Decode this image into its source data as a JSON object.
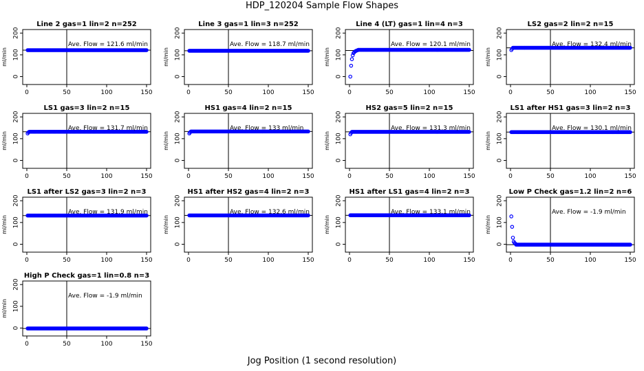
{
  "page": {
    "title": "HDP_120204  Sample Flow Shapes",
    "xlabel": "Jog Position (1 second resolution)"
  },
  "colors": {
    "points": "#0000ff",
    "axis": "#000000"
  },
  "chart_data": [
    {
      "type": "scatter",
      "title": "Line 2 gas=1 lin=2 n=252",
      "ylabel": "ml/min",
      "annotation": "Ave. Flow =  121.6  ml/min",
      "mean": 121.6,
      "hline": 121.6,
      "vline": 50,
      "xlim": [
        0,
        150
      ],
      "ylim": [
        -30,
        210
      ],
      "xticks": [
        0,
        50,
        100,
        150
      ],
      "yticks": [
        0,
        100,
        200
      ],
      "shape": "flat",
      "level": 121.6
    },
    {
      "type": "scatter",
      "title": "Line 3 gas=1 lin=3 n=252",
      "ylabel": "ml/min",
      "annotation": "Ave. Flow =  118.7  ml/min",
      "mean": 118.7,
      "hline": 118.7,
      "vline": 50,
      "xlim": [
        0,
        150
      ],
      "ylim": [
        -30,
        210
      ],
      "xticks": [
        0,
        50,
        100,
        150
      ],
      "yticks": [
        0,
        100,
        200
      ],
      "shape": "flat",
      "level": 118.7
    },
    {
      "type": "scatter",
      "title": "Line 4 (LT) gas=1 lin=4 n=3",
      "ylabel": "ml/min",
      "annotation": "Ave. Flow =  120.1  ml/min",
      "mean": 120.1,
      "hline": 120.1,
      "vline": 50,
      "xlim": [
        0,
        150
      ],
      "ylim": [
        -30,
        210
      ],
      "xticks": [
        0,
        50,
        100,
        150
      ],
      "yticks": [
        0,
        100,
        200
      ],
      "shape": "rise",
      "level": 123,
      "start_points": [
        [
          1,
          0
        ],
        [
          2,
          50
        ],
        [
          3,
          80
        ],
        [
          4,
          98
        ],
        [
          5,
          108
        ],
        [
          6,
          112
        ],
        [
          7,
          116
        ],
        [
          8,
          118
        ],
        [
          9,
          120
        ],
        [
          10,
          121
        ]
      ]
    },
    {
      "type": "scatter",
      "title": "LS2 gas=2 lin=2 n=15",
      "ylabel": "ml/min",
      "annotation": "Ave. Flow =  132.4  ml/min",
      "mean": 132.4,
      "hline": 132.4,
      "vline": 50,
      "xlim": [
        0,
        150
      ],
      "ylim": [
        -30,
        210
      ],
      "xticks": [
        0,
        50,
        100,
        150
      ],
      "yticks": [
        0,
        100,
        200
      ],
      "shape": "flat",
      "level": 132.4,
      "start_points": [
        [
          1,
          122
        ],
        [
          2,
          128
        ]
      ]
    },
    {
      "type": "scatter",
      "title": "LS1 gas=3 lin=2 n=15",
      "ylabel": "ml/min",
      "annotation": "Ave. Flow =  131.7  ml/min",
      "mean": 131.7,
      "hline": 131.7,
      "vline": 50,
      "xlim": [
        0,
        150
      ],
      "ylim": [
        -30,
        210
      ],
      "xticks": [
        0,
        50,
        100,
        150
      ],
      "yticks": [
        0,
        100,
        200
      ],
      "shape": "flat",
      "level": 131.7,
      "start_points": [
        [
          1,
          124
        ],
        [
          2,
          129
        ]
      ]
    },
    {
      "type": "scatter",
      "title": "HS1 gas=4 lin=2 n=15",
      "ylabel": "ml/min",
      "annotation": "Ave. Flow =  133  ml/min",
      "mean": 133,
      "hline": 133,
      "vline": 50,
      "xlim": [
        0,
        150
      ],
      "ylim": [
        -30,
        210
      ],
      "xticks": [
        0,
        50,
        100,
        150
      ],
      "yticks": [
        0,
        100,
        200
      ],
      "shape": "flat",
      "level": 133,
      "start_points": [
        [
          1,
          124
        ],
        [
          2,
          129
        ]
      ]
    },
    {
      "type": "scatter",
      "title": "HS2 gas=5 lin=2 n=15",
      "ylabel": "ml/min",
      "annotation": "Ave. Flow =  131.3  ml/min",
      "mean": 131.3,
      "hline": 131.3,
      "vline": 50,
      "xlim": [
        0,
        150
      ],
      "ylim": [
        -30,
        210
      ],
      "xticks": [
        0,
        50,
        100,
        150
      ],
      "yticks": [
        0,
        100,
        200
      ],
      "shape": "flat",
      "level": 131.3,
      "start_points": [
        [
          1,
          120
        ],
        [
          2,
          127
        ]
      ]
    },
    {
      "type": "scatter",
      "title": "LS1 after HS1 gas=3 lin=2 n=3",
      "ylabel": "ml/min",
      "annotation": "Ave. Flow =  130.1  ml/min",
      "mean": 130.1,
      "hline": 130.1,
      "vline": 50,
      "xlim": [
        0,
        150
      ],
      "ylim": [
        -30,
        210
      ],
      "xticks": [
        0,
        50,
        100,
        150
      ],
      "yticks": [
        0,
        100,
        200
      ],
      "shape": "flat",
      "level": 130.1
    },
    {
      "type": "scatter",
      "title": "LS1 after LS2 gas=3 lin=2 n=3",
      "ylabel": "ml/min",
      "annotation": "Ave. Flow =  131.9  ml/min",
      "mean": 131.9,
      "hline": 131.9,
      "vline": 50,
      "xlim": [
        0,
        150
      ],
      "ylim": [
        -30,
        210
      ],
      "xticks": [
        0,
        50,
        100,
        150
      ],
      "yticks": [
        0,
        100,
        200
      ],
      "shape": "flat",
      "level": 131.9
    },
    {
      "type": "scatter",
      "title": "HS1 after HS2 gas=4 lin=2 n=3",
      "ylabel": "ml/min",
      "annotation": "Ave. Flow =  132.6  ml/min",
      "mean": 132.6,
      "hline": 132.6,
      "vline": 50,
      "xlim": [
        0,
        150
      ],
      "ylim": [
        -30,
        210
      ],
      "xticks": [
        0,
        50,
        100,
        150
      ],
      "yticks": [
        0,
        100,
        200
      ],
      "shape": "flat",
      "level": 132.6
    },
    {
      "type": "scatter",
      "title": "HS1 after LS1 gas=4 lin=2 n=3",
      "ylabel": "ml/min",
      "annotation": "Ave. Flow =  133.1  ml/min",
      "mean": 133.1,
      "hline": 133.1,
      "vline": 50,
      "xlim": [
        0,
        150
      ],
      "ylim": [
        -30,
        210
      ],
      "xticks": [
        0,
        50,
        100,
        150
      ],
      "yticks": [
        0,
        100,
        200
      ],
      "shape": "flat",
      "level": 133.1
    },
    {
      "type": "scatter",
      "title": "Low P Check gas=1.2 lin=2 n=6",
      "ylabel": "ml/min",
      "annotation": "Ave. Flow =  -1.9  ml/min",
      "mean": -1.9,
      "hline": -1.9,
      "vline": 50,
      "xlim": [
        0,
        150
      ],
      "ylim": [
        -30,
        210
      ],
      "xticks": [
        0,
        50,
        100,
        150
      ],
      "yticks": [
        0,
        100,
        200
      ],
      "shape": "decay",
      "level": -1.9,
      "start_points": [
        [
          1,
          128
        ],
        [
          2,
          80
        ],
        [
          3,
          30
        ],
        [
          4,
          12
        ],
        [
          5,
          6
        ],
        [
          6,
          3
        ]
      ]
    },
    {
      "type": "scatter",
      "title": "High P Check gas=1 lin=0.8 n=3",
      "ylabel": "ml/min",
      "annotation": "Ave. Flow =  -1.9  ml/min",
      "mean": -1.9,
      "hline": -1.9,
      "vline": 50,
      "xlim": [
        0,
        150
      ],
      "ylim": [
        -30,
        210
      ],
      "xticks": [
        0,
        50,
        100,
        150
      ],
      "yticks": [
        0,
        100,
        200
      ],
      "shape": "flat",
      "level": -1.9
    }
  ]
}
